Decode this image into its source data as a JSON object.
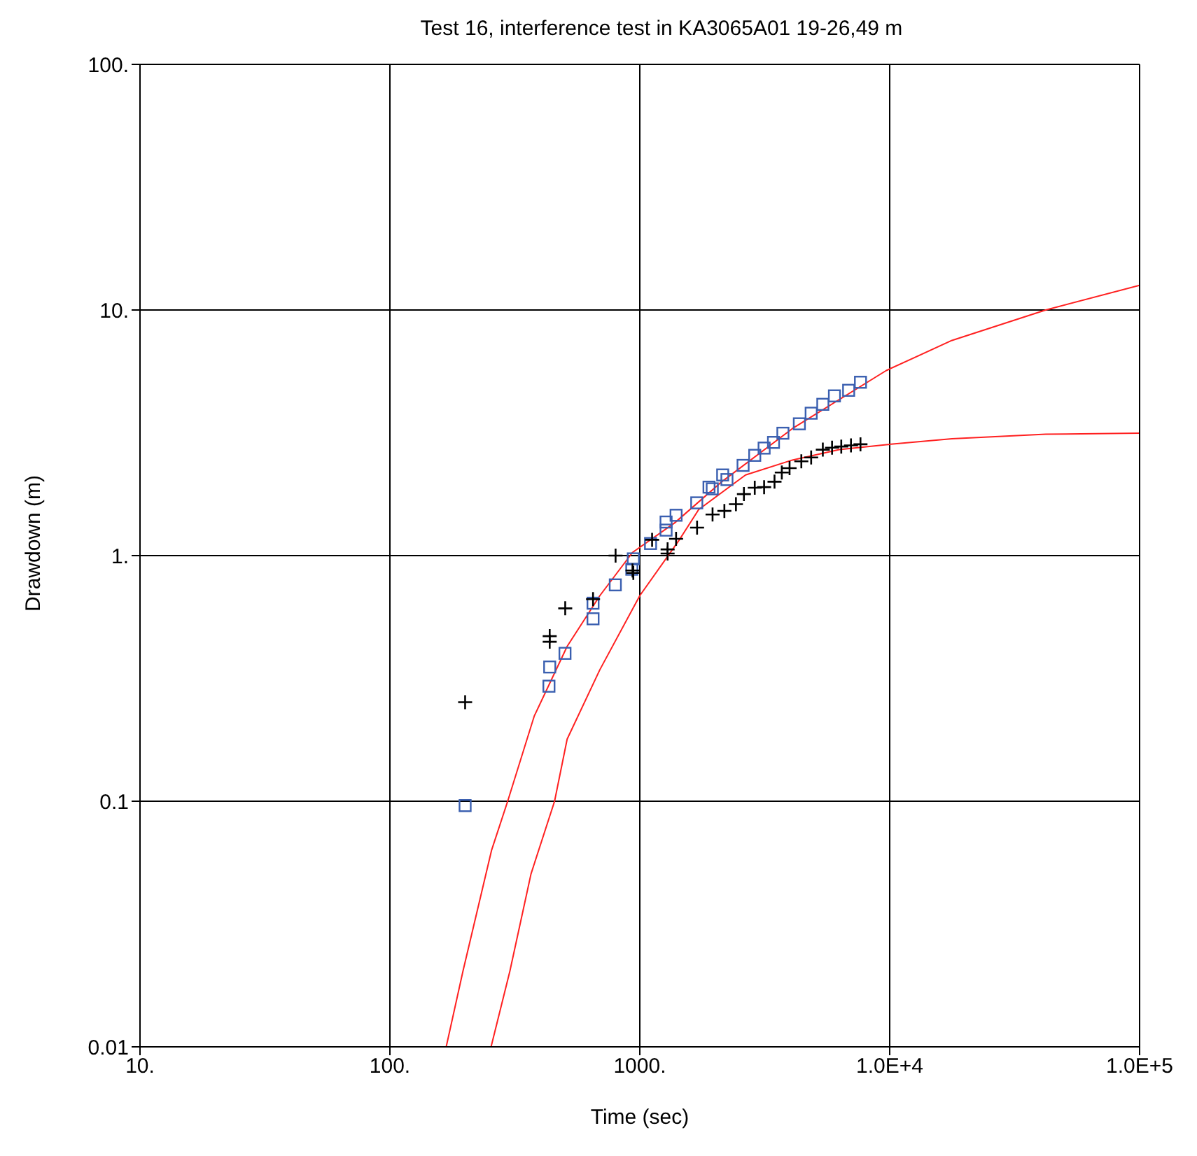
{
  "chart_data": {
    "type": "scatter",
    "title": "Test 16, interference test in KA3065A01 19-26,49 m",
    "xlabel": "Time (sec)",
    "ylabel": "Drawdown (m)",
    "log": "xy",
    "grid": true,
    "legend": false,
    "xlim": [
      10,
      100000
    ],
    "ylim": [
      0.01,
      100
    ],
    "xticks": [
      {
        "value": 10,
        "label": "10."
      },
      {
        "value": 100,
        "label": "100."
      },
      {
        "value": 1000,
        "label": "1000."
      },
      {
        "value": 10000,
        "label": "1.0E+4"
      },
      {
        "value": 100000,
        "label": "1.0E+5"
      }
    ],
    "yticks": [
      0.01,
      0.1,
      {
        "value": 1,
        "label": "1."
      },
      {
        "value": 10,
        "label": "10."
      },
      {
        "value": 100,
        "label": "100."
      }
    ],
    "series": [
      {
        "marker": "square",
        "color": "#3a5fb0",
        "x": [
          200,
          433,
          436,
          502,
          650,
          650,
          798,
          929,
          942,
          1104,
          1274,
          1274,
          1397,
          1690,
          1892,
          1950,
          2146,
          2232,
          2590,
          2884,
          3144,
          3428,
          3738,
          4350,
          4850,
          5400,
          6010,
          6850,
          7640
        ],
        "values": [
          0.096,
          0.294,
          0.352,
          0.4,
          0.553,
          0.64,
          0.76,
          0.88,
          0.97,
          1.12,
          1.27,
          1.37,
          1.46,
          1.64,
          1.9,
          1.87,
          2.13,
          2.04,
          2.33,
          2.56,
          2.74,
          2.89,
          3.15,
          3.44,
          3.8,
          4.13,
          4.47,
          4.71,
          5.08
        ]
      },
      {
        "marker": "cross",
        "color": "#000000",
        "x": [
          200,
          436,
          436,
          503,
          650,
          800,
          935,
          942,
          1120,
          1292,
          1292,
          1397,
          1695,
          1955,
          2180,
          2425,
          2610,
          2884,
          3144,
          3460,
          3700,
          3975,
          4430,
          4850,
          5400,
          5880,
          6400,
          7000,
          7640
        ],
        "values": [
          0.253,
          0.47,
          0.446,
          0.61,
          0.665,
          1.0,
          0.87,
          0.85,
          1.16,
          1.06,
          1.02,
          1.17,
          1.3,
          1.47,
          1.52,
          1.62,
          1.78,
          1.89,
          1.9,
          2.0,
          2.18,
          2.27,
          2.42,
          2.51,
          2.7,
          2.75,
          2.78,
          2.81,
          2.84
        ]
      },
      {
        "type": "line",
        "marker": "none",
        "color": "#ff2020",
        "x": [
          168,
          196,
          255,
          296,
          378,
          512,
          692,
          935,
          1380,
          2130,
          4080,
          9690,
          17750,
          42100,
          100000
        ],
        "values": [
          0.01,
          0.0203,
          0.063,
          0.1,
          0.222,
          0.427,
          0.687,
          1.03,
          1.36,
          2.0,
          3.29,
          5.67,
          7.52,
          10,
          12.6
        ]
      },
      {
        "type": "line",
        "marker": "none",
        "color": "#ff2020",
        "x": [
          254,
          302,
          367,
          456,
          512,
          692,
          1000,
          1440,
          1720,
          2650,
          4080,
          6280,
          9690,
          17750,
          42100,
          100000
        ],
        "values": [
          0.01,
          0.0203,
          0.0506,
          0.1,
          0.179,
          0.343,
          0.687,
          1.16,
          1.54,
          2.13,
          2.45,
          2.7,
          2.83,
          2.99,
          3.12,
          3.15
        ]
      }
    ]
  }
}
